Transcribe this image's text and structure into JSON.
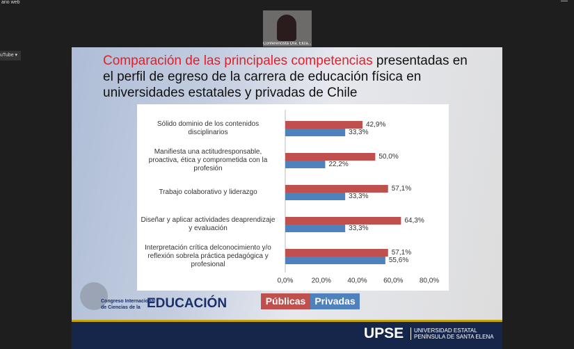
{
  "window_title": "ario web",
  "menu": "uTube ▾",
  "participant": "Conferencista Dra. Eliza...",
  "slide": {
    "title_highlight": "Comparación de las principales competencias",
    "title_rest": " presentadas en el perfil de egreso de la carrera de educación física en universidades estatales y privadas de Chile",
    "logo_top": "Congreso Internacional",
    "logo_mid": "de Ciencias de la",
    "logo_main": "EDUCACIÓN",
    "footer_brand": "UPSE",
    "footer_line1": "UNIVERSIDAD ESTATAL",
    "footer_line2": "PENÍNSULA DE SANTA ELENA"
  },
  "chart_data": {
    "type": "bar",
    "orientation": "horizontal",
    "categories": [
      "Sólido dominio de los contenidos disciplinarios",
      "Manifiesta una actitudresponsable, proactiva, ética y comprometida con la profesión",
      "Trabajo colaborativo y liderazgo",
      "Diseñar y aplicar actividades deaprendizaje y evaluación",
      "Interpretación crítica delconocimiento y/o reflexión sobrela práctica pedagógica y profesional"
    ],
    "series": [
      {
        "name": "Públicas",
        "color": "#c0504d",
        "values": [
          42.9,
          50.0,
          57.1,
          64.3,
          57.1
        ],
        "value_labels": [
          "42,9%",
          "50,0%",
          "57,1%",
          "64,3%",
          "57,1%"
        ]
      },
      {
        "name": "Privadas",
        "color": "#4f81bd",
        "values": [
          33.3,
          22.2,
          33.3,
          33.3,
          55.6
        ],
        "value_labels": [
          "33,3%",
          "22,2%",
          "33,3%",
          "33,3%",
          "55,6%"
        ]
      }
    ],
    "xlim": [
      0,
      80
    ],
    "xticks": [
      {
        "value": 0,
        "label": "0,0%"
      },
      {
        "value": 20,
        "label": "20,0%"
      },
      {
        "value": 40,
        "label": "40,0%"
      },
      {
        "value": 60,
        "label": "60,0%"
      },
      {
        "value": 80,
        "label": "80,0%"
      }
    ],
    "legend": "bottom"
  }
}
